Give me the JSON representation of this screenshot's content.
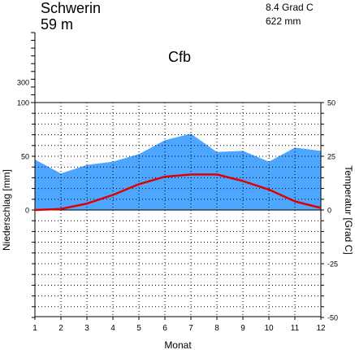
{
  "header": {
    "station": "Schwerin",
    "elevation": "59 m",
    "annual_temp": "8.4 Grad C",
    "annual_precip": "622 mm",
    "climate_class": "Cfb"
  },
  "colors": {
    "precip_fill": "#4da6ff",
    "temp_line": "#e00000",
    "grid": "#000000"
  },
  "chart_data": {
    "type": "area",
    "x": [
      1,
      2,
      3,
      4,
      5,
      6,
      7,
      8,
      9,
      10,
      11,
      12
    ],
    "xlabel": "Monat",
    "ylabel_left": "Niederschlag [mm]",
    "ylabel_right": "Temperatur [Grad C]",
    "left_ticks": [
      "300",
      "100",
      "50",
      "0"
    ],
    "right_ticks": [
      "50",
      "25",
      "0",
      "-25",
      "-50"
    ],
    "precip_ylim": [
      0,
      100
    ],
    "temp_ylim": [
      -50,
      50
    ],
    "grid": true,
    "series": [
      {
        "axis": "left",
        "kind": "area",
        "values": [
          47,
          34,
          42,
          45,
          52,
          65,
          71,
          54,
          55,
          45,
          58,
          55
        ]
      },
      {
        "axis": "right",
        "kind": "line",
        "values": [
          0,
          0.5,
          3,
          7,
          12,
          15.5,
          16.5,
          16.5,
          13.5,
          9.5,
          4,
          1
        ]
      }
    ]
  }
}
